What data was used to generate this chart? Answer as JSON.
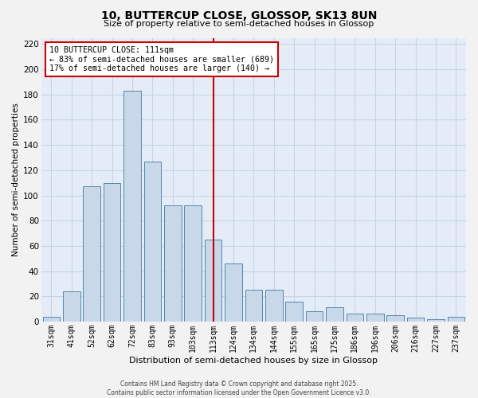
{
  "title_line1": "10, BUTTERCUP CLOSE, GLOSSOP, SK13 8UN",
  "title_line2": "Size of property relative to semi-detached houses in Glossop",
  "categories": [
    "31sqm",
    "41sqm",
    "52sqm",
    "62sqm",
    "72sqm",
    "83sqm",
    "93sqm",
    "103sqm",
    "113sqm",
    "124sqm",
    "134sqm",
    "144sqm",
    "155sqm",
    "165sqm",
    "175sqm",
    "186sqm",
    "196sqm",
    "206sqm",
    "216sqm",
    "227sqm",
    "237sqm"
  ],
  "values": [
    4,
    24,
    107,
    110,
    183,
    127,
    92,
    92,
    65,
    46,
    25,
    25,
    16,
    8,
    11,
    6,
    6,
    5,
    3,
    2,
    4
  ],
  "bar_color": "#c8d8e8",
  "bar_edge_color": "#5588aa",
  "bar_edge_width": 0.7,
  "vline_x_index": 8,
  "vline_color": "#cc0000",
  "vline_label": "10 BUTTERCUP CLOSE: 111sqm",
  "annotation_line1": "← 83% of semi-detached houses are smaller (689)",
  "annotation_line2": "17% of semi-detached houses are larger (140) →",
  "annotation_box_color": "#cc0000",
  "ylabel": "Number of semi-detached properties",
  "xlabel": "Distribution of semi-detached houses by size in Glossop",
  "ylim": [
    0,
    225
  ],
  "yticks": [
    0,
    20,
    40,
    60,
    80,
    100,
    120,
    140,
    160,
    180,
    200,
    220
  ],
  "grid_color": "#c8d4e4",
  "background_color": "#e4ecf7",
  "fig_background": "#f2f2f2",
  "footer_line1": "Contains HM Land Registry data © Crown copyright and database right 2025.",
  "footer_line2": "Contains public sector information licensed under the Open Government Licence v3.0."
}
